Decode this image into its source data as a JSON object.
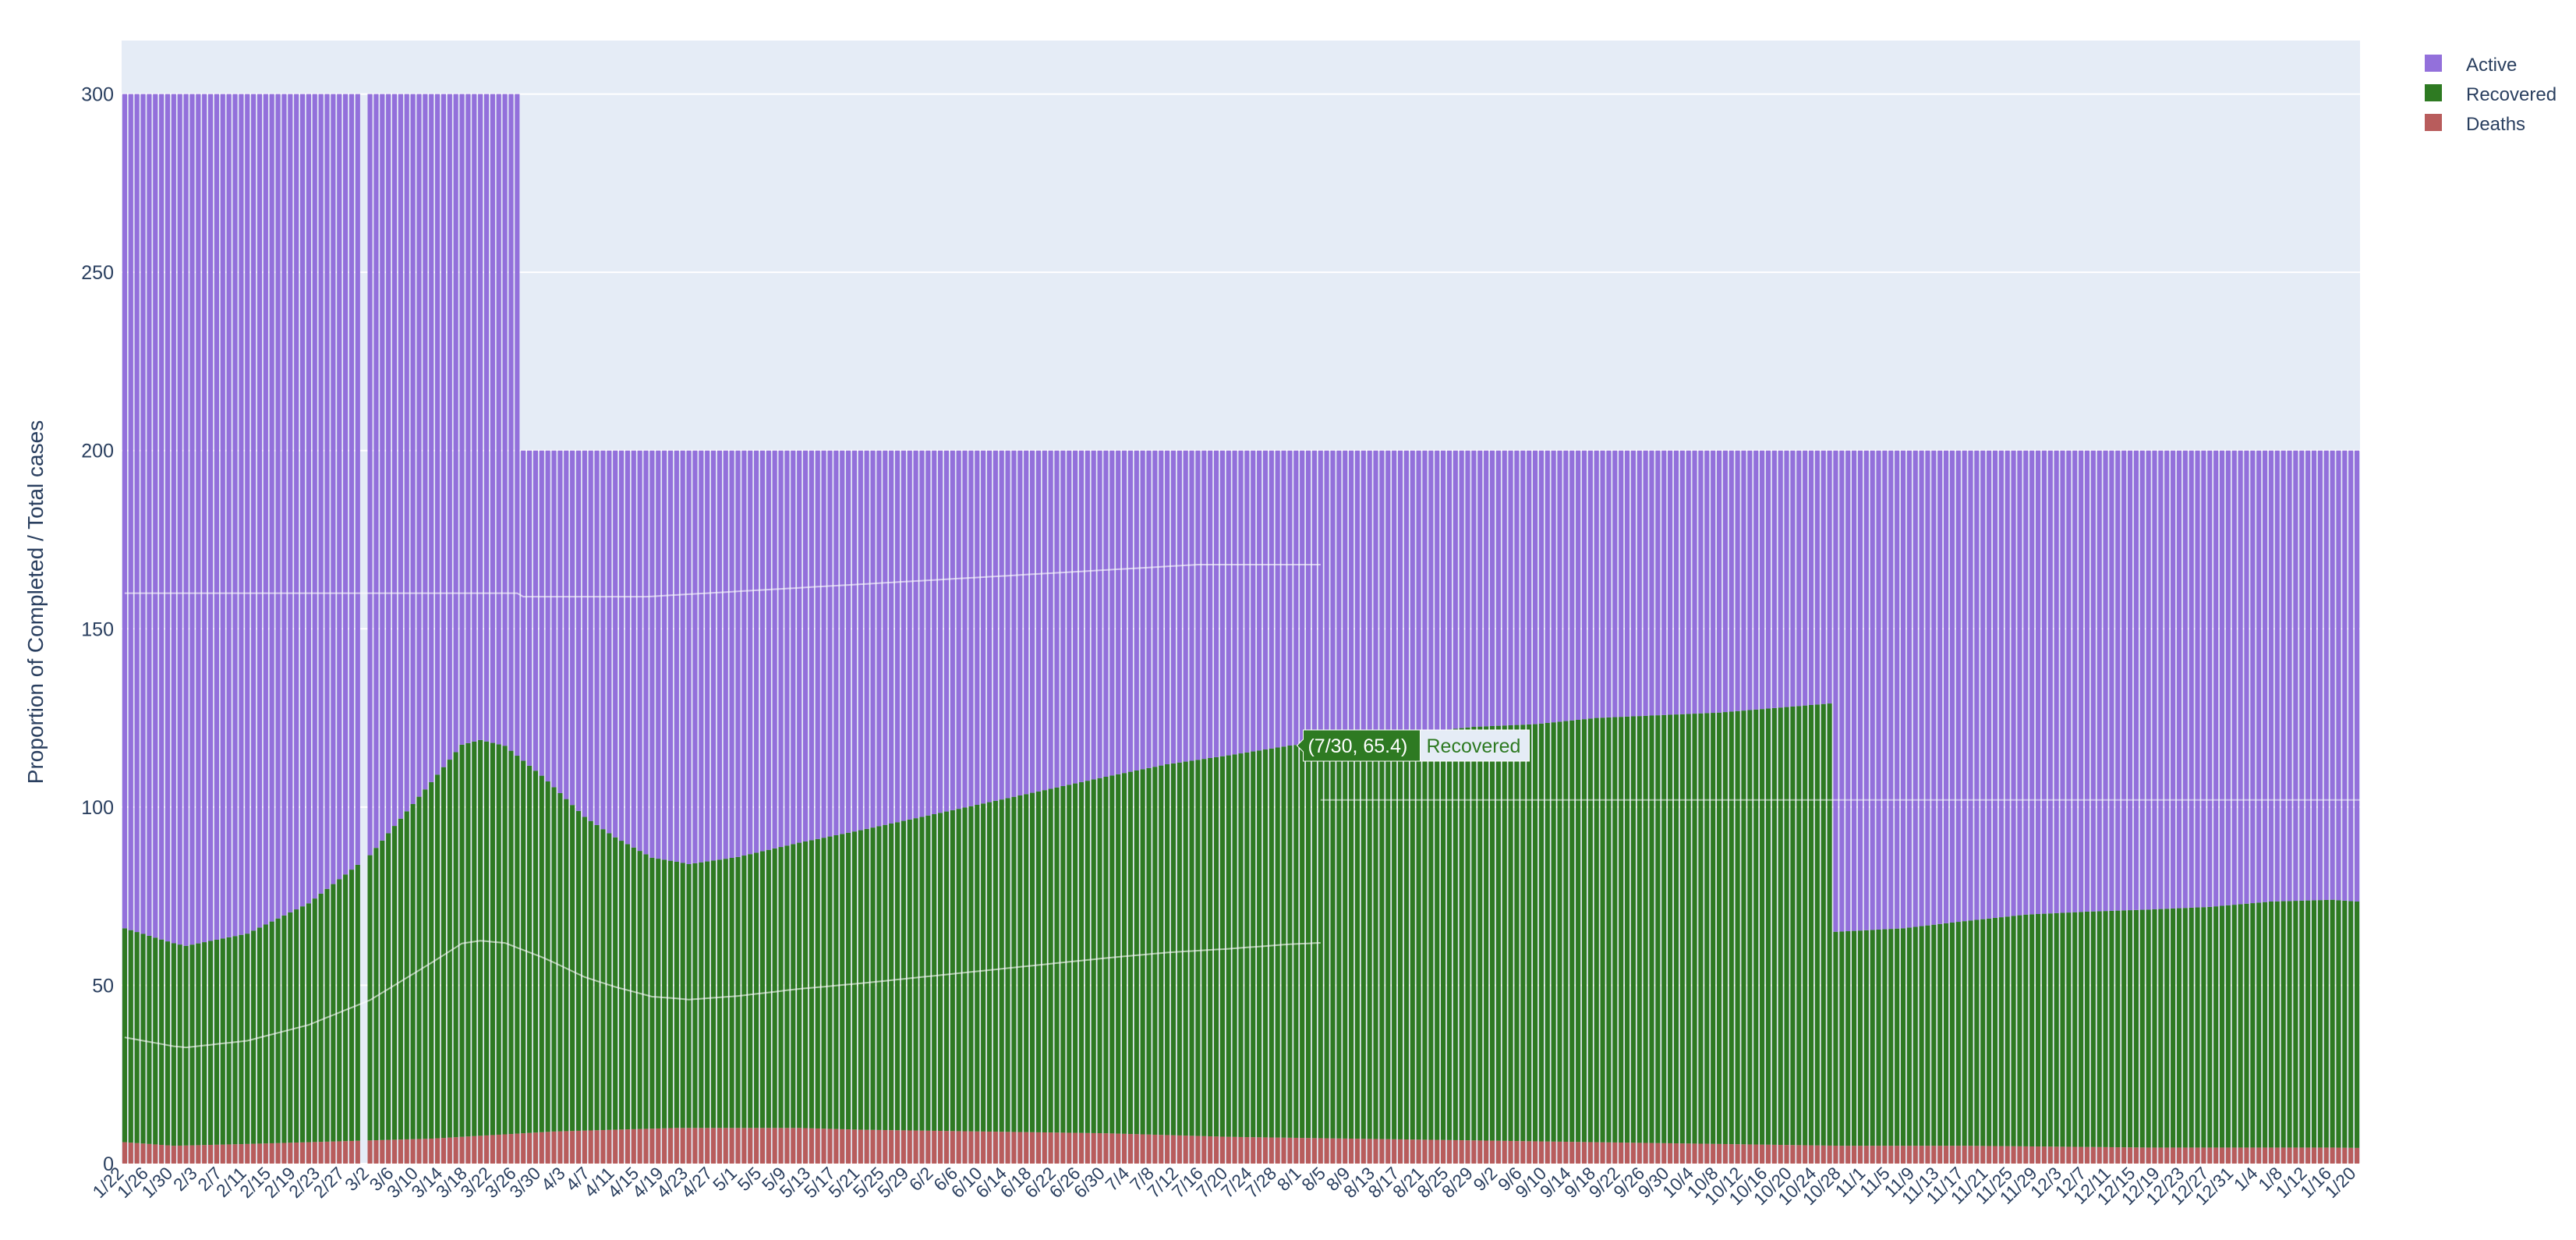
{
  "chart_data": {
    "type": "bar",
    "barmode": "stack",
    "title": "",
    "xlabel": "",
    "ylabel": "Proportion of Completed / Total cases",
    "ylim": [
      0,
      315
    ],
    "yticks": [
      0,
      50,
      100,
      150,
      200,
      250,
      300
    ],
    "grid": true,
    "legend_position": "top-right",
    "x_start": "1/22",
    "x_end": "1/20",
    "x_tick_labels": [
      "1/22",
      "1/26",
      "1/30",
      "2/3",
      "2/7",
      "2/11",
      "2/15",
      "2/19",
      "2/23",
      "2/27",
      "3/2",
      "3/6",
      "3/10",
      "3/14",
      "3/18",
      "3/22",
      "3/26",
      "3/30",
      "4/3",
      "4/7",
      "4/11",
      "4/15",
      "4/19",
      "4/23",
      "4/27",
      "5/1",
      "5/5",
      "5/9",
      "5/13",
      "5/17",
      "5/21",
      "5/25",
      "5/29",
      "6/2",
      "6/6",
      "6/10",
      "6/14",
      "6/18",
      "6/22",
      "6/26",
      "6/30",
      "7/4",
      "7/8",
      "7/12",
      "7/16",
      "7/20",
      "7/24",
      "7/28",
      "8/1",
      "8/5",
      "8/9",
      "8/13",
      "8/17",
      "8/21",
      "8/25",
      "8/29",
      "9/2",
      "9/6",
      "9/10",
      "9/14",
      "9/18",
      "9/22",
      "9/26",
      "9/30",
      "10/4",
      "10/8",
      "10/12",
      "10/16",
      "10/20",
      "10/24",
      "10/28",
      "11/1",
      "11/5",
      "11/9",
      "11/13",
      "11/17",
      "11/21",
      "11/25",
      "11/29",
      "12/3",
      "12/7",
      "12/11",
      "12/15",
      "12/19",
      "12/23",
      "12/27",
      "12/31",
      "1/4",
      "1/8",
      "1/12",
      "1/16",
      "1/20"
    ],
    "series": [
      {
        "name": "Deaths",
        "color": "#b85c5c",
        "anchors": [
          [
            0,
            6
          ],
          [
            8,
            5
          ],
          [
            20,
            5.5
          ],
          [
            30,
            6
          ],
          [
            40,
            6.5
          ],
          [
            50,
            7
          ],
          [
            60,
            8
          ],
          [
            70,
            9
          ],
          [
            80,
            9.5
          ],
          [
            90,
            10
          ],
          [
            110,
            10
          ],
          [
            120,
            9.5
          ],
          [
            140,
            9
          ],
          [
            160,
            8.5
          ],
          [
            180,
            7.5
          ],
          [
            200,
            7
          ],
          [
            220,
            6.5
          ],
          [
            240,
            6
          ],
          [
            260,
            5.5
          ],
          [
            280,
            5
          ],
          [
            300,
            5
          ],
          [
            330,
            4.5
          ],
          [
            360,
            4.5
          ],
          [
            380,
            4
          ],
          [
            400,
            4
          ],
          [
            420,
            4
          ],
          [
            440,
            4
          ],
          [
            460,
            4
          ],
          [
            480,
            4
          ],
          [
            500,
            4
          ],
          [
            519,
            4
          ]
        ]
      },
      {
        "name": "Recovered",
        "color": "#2e7a22",
        "anchors": [
          [
            0,
            60
          ],
          [
            10,
            56
          ],
          [
            20,
            59
          ],
          [
            30,
            67
          ],
          [
            40,
            80
          ],
          [
            45,
            90
          ],
          [
            50,
            100
          ],
          [
            55,
            110
          ],
          [
            58,
            111
          ],
          [
            62,
            109
          ],
          [
            68,
            100
          ],
          [
            75,
            88
          ],
          [
            80,
            82
          ],
          [
            86,
            76
          ],
          [
            92,
            74
          ],
          [
            100,
            76
          ],
          [
            110,
            80
          ],
          [
            120,
            84
          ],
          [
            130,
            88
          ],
          [
            140,
            92
          ],
          [
            150,
            96
          ],
          [
            160,
            100
          ],
          [
            170,
            104
          ],
          [
            180,
            107
          ],
          [
            190,
            110
          ],
          [
            200,
            112
          ],
          [
            210,
            114
          ],
          [
            220,
            116
          ],
          [
            230,
            117
          ],
          [
            240,
            119
          ],
          [
            250,
            120
          ],
          [
            260,
            121
          ],
          [
            278,
            124
          ],
          [
            279,
            60
          ],
          [
            290,
            61
          ],
          [
            300,
            63
          ],
          [
            310,
            65
          ],
          [
            320,
            66
          ],
          [
            340,
            67.5
          ],
          [
            350,
            69
          ],
          [
            360,
            69.5
          ],
          [
            370,
            68.5
          ],
          [
            380,
            67
          ],
          [
            390,
            66
          ],
          [
            400,
            65
          ],
          [
            410,
            64
          ],
          [
            420,
            63.5
          ],
          [
            440,
            63.5
          ],
          [
            460,
            63.5
          ],
          [
            461,
            56
          ],
          [
            480,
            56
          ],
          [
            500,
            55
          ],
          [
            519,
            54.5
          ]
        ]
      },
      {
        "name": "Active",
        "color": "#9370db",
        "total_before_3/27": 300,
        "total_after_3/27": 200
      }
    ],
    "gap_day": "3/1",
    "tooltip": {
      "day": "7/30",
      "text": "(7/30, 65.4)",
      "series": "Recovered"
    }
  }
}
